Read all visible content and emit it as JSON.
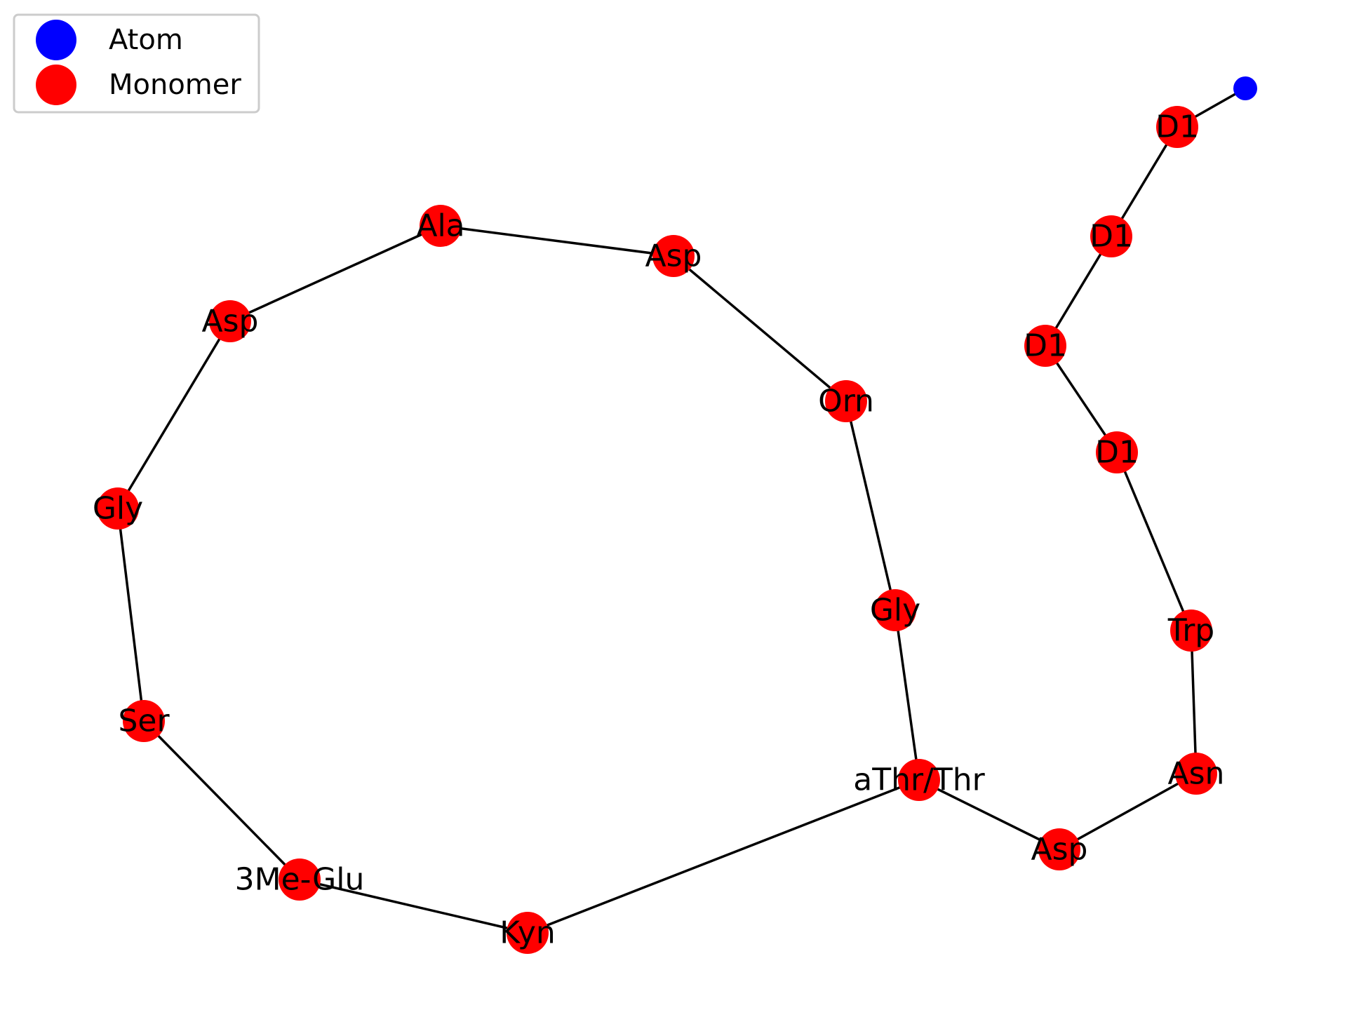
{
  "colors": {
    "atom": "#0000ff",
    "monomer": "#ff0000",
    "edge": "#000000"
  },
  "legend": {
    "items": [
      {
        "label": "Atom",
        "color": "#0000ff"
      },
      {
        "label": "Monomer",
        "color": "#ff0000"
      }
    ]
  },
  "graph": {
    "nodes": [
      {
        "id": "n0",
        "label": "Ala",
        "type": "monomer"
      },
      {
        "id": "n1",
        "label": "Asp",
        "type": "monomer"
      },
      {
        "id": "n2",
        "label": "Asp",
        "type": "monomer"
      },
      {
        "id": "n3",
        "label": "Gly",
        "type": "monomer"
      },
      {
        "id": "n4",
        "label": "Ser",
        "type": "monomer"
      },
      {
        "id": "n5",
        "label": "3Me-Glu",
        "type": "monomer"
      },
      {
        "id": "n6",
        "label": "Kyn",
        "type": "monomer"
      },
      {
        "id": "n7",
        "label": "aThr/Thr",
        "type": "monomer"
      },
      {
        "id": "n8",
        "label": "Gly",
        "type": "monomer"
      },
      {
        "id": "n9",
        "label": "Orn",
        "type": "monomer"
      },
      {
        "id": "n10",
        "label": "Asp",
        "type": "monomer"
      },
      {
        "id": "n11",
        "label": "Asn",
        "type": "monomer"
      },
      {
        "id": "n12",
        "label": "Trp",
        "type": "monomer"
      },
      {
        "id": "n13",
        "label": "D1",
        "type": "monomer"
      },
      {
        "id": "n14",
        "label": "D1",
        "type": "monomer"
      },
      {
        "id": "n15",
        "label": "D1",
        "type": "monomer"
      },
      {
        "id": "n16",
        "label": "D1",
        "type": "monomer"
      },
      {
        "id": "n17",
        "label": "",
        "type": "atom"
      }
    ],
    "edges": [
      [
        "n0",
        "n1"
      ],
      [
        "n1",
        "n9"
      ],
      [
        "n9",
        "n8"
      ],
      [
        "n8",
        "n7"
      ],
      [
        "n7",
        "n6"
      ],
      [
        "n6",
        "n5"
      ],
      [
        "n5",
        "n4"
      ],
      [
        "n4",
        "n3"
      ],
      [
        "n3",
        "n2"
      ],
      [
        "n2",
        "n0"
      ],
      [
        "n7",
        "n10"
      ],
      [
        "n10",
        "n11"
      ],
      [
        "n11",
        "n12"
      ],
      [
        "n12",
        "n13"
      ],
      [
        "n13",
        "n14"
      ],
      [
        "n14",
        "n15"
      ],
      [
        "n15",
        "n16"
      ],
      [
        "n16",
        "n17"
      ]
    ]
  }
}
